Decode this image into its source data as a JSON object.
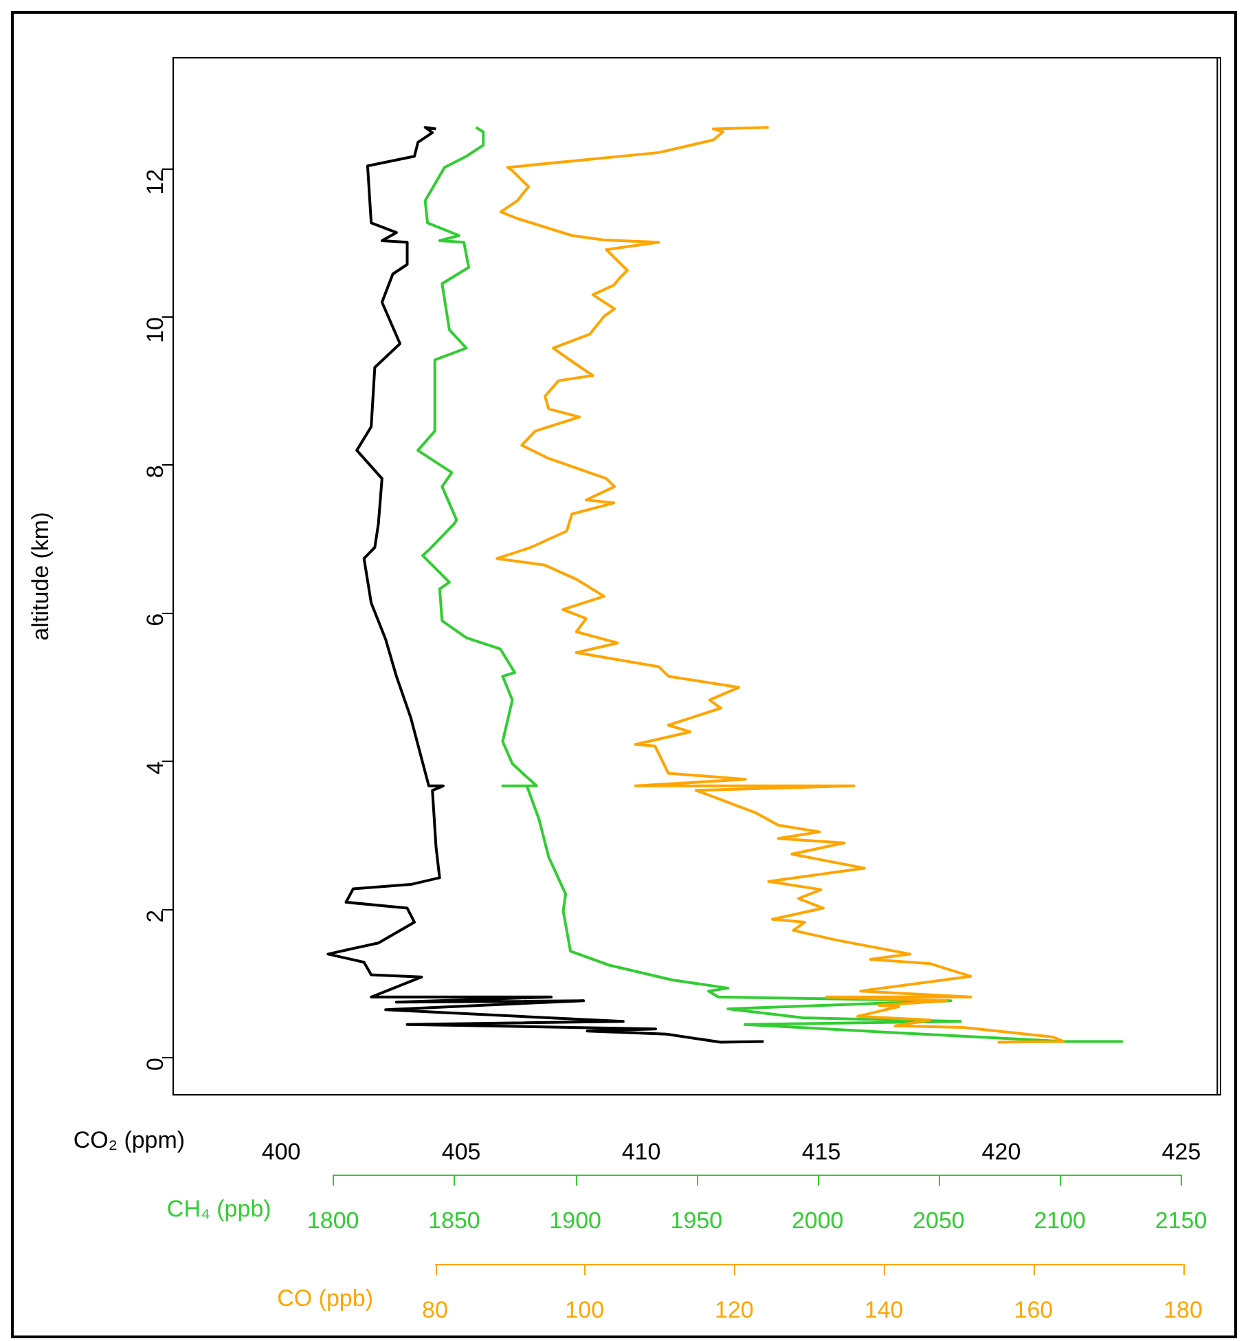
{
  "chart_data": [
    {
      "type": "line",
      "xlabel": "CO₂ (ppm)",
      "x2label": "CH₄ (ppb)",
      "ylabel": "altitude (km)",
      "xlim": [
        397,
        426
      ],
      "xticks": [
        400,
        405,
        410,
        415,
        420,
        425
      ],
      "x2lim": [
        1734,
        2165
      ],
      "x2ticks": [
        1800,
        1850,
        1900,
        1950,
        2000,
        2050,
        2100,
        2150
      ],
      "ylim": [
        -0.5,
        13.5
      ],
      "yticks": [
        0,
        2,
        4,
        6,
        8,
        10,
        12
      ],
      "marker": "none",
      "line_style": "solid",
      "legend": false,
      "series": [
        {
          "color": "#000000",
          "x": [
            413.4,
            412.2,
            410.7,
            408.5,
            410.4,
            403.5,
            409.5,
            402.9,
            408.4,
            403.2,
            407.5,
            402.5,
            403.9,
            402.5,
            402.3,
            401.3,
            402.7,
            403.7,
            403.5,
            401.8,
            402.0,
            403.6,
            404.4,
            404.3,
            404.2,
            404.5,
            404.1,
            403.6,
            403.2,
            402.9,
            402.5,
            402.3,
            402.6,
            402.7,
            402.8,
            402.1,
            402.5,
            402.6,
            403.3,
            402.8,
            403.1,
            403.5,
            403.5,
            402.8,
            403.2,
            402.5,
            402.4,
            403.7,
            403.8,
            404.2,
            404.0,
            404.3
          ],
          "values": [
            0.22,
            0.21,
            0.32,
            0.36,
            0.39,
            0.45,
            0.49,
            0.65,
            0.77,
            0.75,
            0.82,
            0.82,
            1.09,
            1.12,
            1.29,
            1.4,
            1.55,
            1.83,
            2.02,
            2.1,
            2.28,
            2.34,
            2.43,
            2.85,
            3.61,
            3.67,
            3.67,
            4.59,
            5.15,
            5.65,
            6.14,
            6.74,
            6.89,
            7.21,
            7.82,
            8.2,
            8.52,
            9.32,
            9.64,
            10.2,
            10.58,
            10.71,
            11.01,
            11.03,
            11.14,
            11.27,
            12.04,
            12.17,
            12.36,
            12.49,
            12.56,
            12.54
          ]
        },
        {
          "color": "#32cd32",
          "axis": "x2",
          "x": [
            2126,
            2102,
            2031,
            1970,
            2059,
            1994,
            1963,
            2055,
            1959,
            1955,
            1963,
            1940,
            1914,
            1898,
            1895,
            1896,
            1889,
            1885,
            1880,
            1870,
            1884,
            1874,
            1870,
            1874,
            1870,
            1875,
            1869,
            1855,
            1845,
            1844,
            1848,
            1837,
            1840,
            1850,
            1851,
            1845,
            1849,
            1835,
            1842,
            1842,
            1855,
            1848,
            1845,
            1856,
            1854,
            1844,
            1852,
            1839,
            1838,
            1846,
            1855,
            1862,
            1862,
            1859
          ],
          "values": [
            0.22,
            0.22,
            0.34,
            0.45,
            0.49,
            0.54,
            0.66,
            0.77,
            0.82,
            0.9,
            0.94,
            1.05,
            1.25,
            1.44,
            1.98,
            2.21,
            2.71,
            3.22,
            3.67,
            3.67,
            3.67,
            3.97,
            4.27,
            4.83,
            5.15,
            5.2,
            5.52,
            5.67,
            5.9,
            6.33,
            6.42,
            6.78,
            6.87,
            7.21,
            7.26,
            7.71,
            7.9,
            8.2,
            8.46,
            9.42,
            9.58,
            9.83,
            10.45,
            10.67,
            11.01,
            11.03,
            11.1,
            11.27,
            11.57,
            12.02,
            12.17,
            12.32,
            12.5,
            12.56
          ]
        }
      ]
    },
    {
      "type": "line",
      "xlabel": "CO (ppb)",
      "xlim": [
        45,
        185
      ],
      "xticks": [
        80,
        100,
        120,
        140,
        160,
        180
      ],
      "ylim": [
        -0.5,
        13.5
      ],
      "yticks": [
        0,
        2,
        4,
        6,
        8,
        10,
        12
      ],
      "tick_labels": "x",
      "marker": "none",
      "line_style": "solid",
      "legend": false,
      "series": [
        {
          "color": "#ffa500",
          "x": [
            155.2,
            164.0,
            162.6,
            150.6,
            141.5,
            146.2,
            136.5,
            142.0,
            139.3,
            148.4,
            132.3,
            151.6,
            136.9,
            151.6,
            146.2,
            138.2,
            143.5,
            133.6,
            127.9,
            129.4,
            125.1,
            131.9,
            128.6,
            131.6,
            124.6,
            137.4,
            127.7,
            134.7,
            125.9,
            131.4,
            125.9,
            122.8,
            114.9,
            136.0,
            106.8,
            121.5,
            111.2,
            109.4,
            106.8,
            114.1,
            111.2,
            118.2,
            116.7,
            120.6,
            111.2,
            109.9,
            98.9,
            104.4,
            98.9,
            100.2,
            97.1,
            102.6,
            98.9,
            94.7,
            88.3,
            92.8,
            97.6,
            98.3,
            103.9,
            100.2,
            104.0,
            102.9,
            95.2,
            91.6,
            93.4,
            99.3,
            95.2,
            94.7,
            96.5,
            101.1,
            97.6,
            95.8,
            100.7,
            102.6,
            104.0,
            101.1,
            103.9,
            104.8,
            105.7,
            102.9,
            109.9,
            102.6,
            98.3,
            91.0,
            88.8,
            91.0,
            92.5,
            90.3,
            89.7,
            109.9,
            117.2,
            118.5,
            117.2,
            124.6
          ],
          "values": [
            0.21,
            0.22,
            0.28,
            0.41,
            0.43,
            0.51,
            0.56,
            0.69,
            0.71,
            0.77,
            0.82,
            0.82,
            0.9,
            1.1,
            1.27,
            1.33,
            1.4,
            1.59,
            1.72,
            1.83,
            1.87,
            2.02,
            2.15,
            2.27,
            2.38,
            2.56,
            2.75,
            2.9,
            2.96,
            3.05,
            3.14,
            3.31,
            3.61,
            3.67,
            3.67,
            3.76,
            3.84,
            4.21,
            4.23,
            4.4,
            4.49,
            4.72,
            4.83,
            5.0,
            5.15,
            5.28,
            5.47,
            5.6,
            5.75,
            5.93,
            6.05,
            6.23,
            6.46,
            6.65,
            6.74,
            6.89,
            7.11,
            7.34,
            7.49,
            7.53,
            7.71,
            7.82,
            8.09,
            8.27,
            8.46,
            8.65,
            8.76,
            8.93,
            9.14,
            9.21,
            9.45,
            9.58,
            9.77,
            10.01,
            10.11,
            10.3,
            10.43,
            10.54,
            10.63,
            10.91,
            11.01,
            11.04,
            11.1,
            11.33,
            11.42,
            11.57,
            11.76,
            11.98,
            12.02,
            12.22,
            12.39,
            12.5,
            12.54,
            12.56
          ]
        }
      ]
    }
  ]
}
